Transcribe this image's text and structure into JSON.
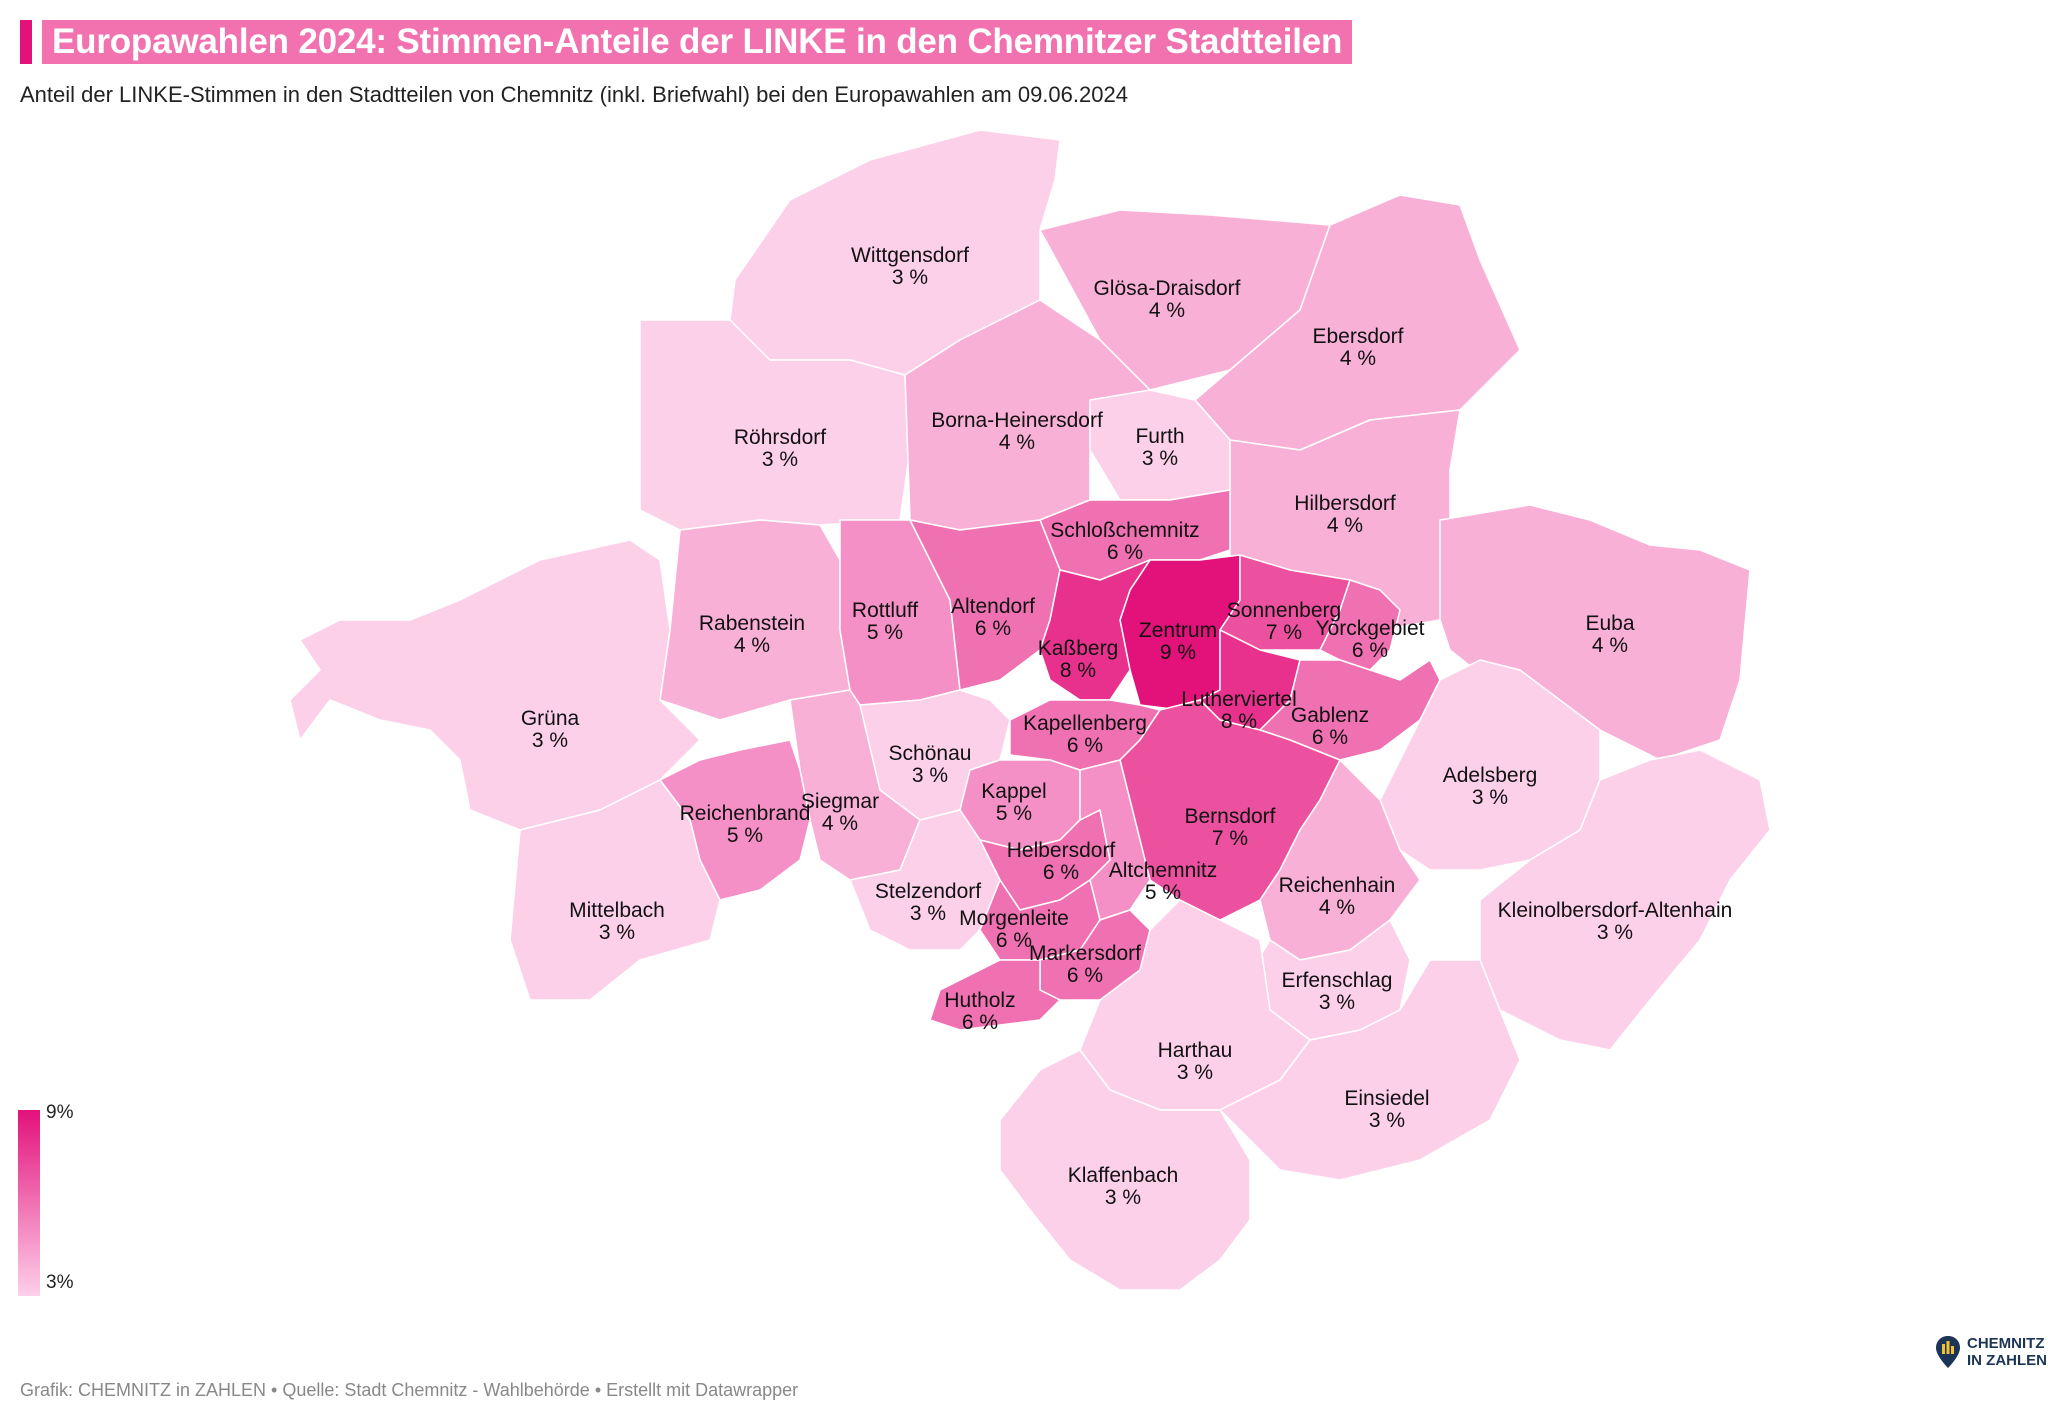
{
  "header": {
    "title": "Europawahlen 2024: Stimmen-Anteile der LINKE in den Chemnitzer Stadtteilen",
    "subtitle": "Anteil der LINKE-Stimmen in den Stadtteilen von Chemnitz (inkl. Briefwahl) bei den Europawahlen am 09.06.2024"
  },
  "legend": {
    "max_label": "9%",
    "min_label": "3%"
  },
  "colors": {
    "accent": "#e3117a",
    "title_bg": "#f272b0",
    "scale_low": "#fdd0ea",
    "scale_high": "#e3117a"
  },
  "footer": {
    "source": "Grafik: CHEMNITZ in ZAHLEN • Quelle: Stadt Chemnitz - Wahlbehörde • Erstellt mit Datawrapper"
  },
  "logo": {
    "line1": "CHEMNITZ",
    "line2": "IN ZAHLEN"
  },
  "districts": [
    {
      "name": "Wittgensdorf",
      "value": 3,
      "label": "3 %"
    },
    {
      "name": "Glösa-Draisdorf",
      "value": 4,
      "label": "4 %"
    },
    {
      "name": "Ebersdorf",
      "value": 4,
      "label": "4 %"
    },
    {
      "name": "Röhrsdorf",
      "value": 3,
      "label": "3 %"
    },
    {
      "name": "Borna-Heinersdorf",
      "value": 4,
      "label": "4 %"
    },
    {
      "name": "Furth",
      "value": 3,
      "label": "3 %"
    },
    {
      "name": "Hilbersdorf",
      "value": 4,
      "label": "4 %"
    },
    {
      "name": "Schloßchemnitz",
      "value": 6,
      "label": "6 %"
    },
    {
      "name": "Rabenstein",
      "value": 4,
      "label": "4 %"
    },
    {
      "name": "Rottluff",
      "value": 5,
      "label": "5 %"
    },
    {
      "name": "Altendorf",
      "value": 6,
      "label": "6 %"
    },
    {
      "name": "Zentrum",
      "value": 9,
      "label": "9 %"
    },
    {
      "name": "Sonnenberg",
      "value": 7,
      "label": "7 %"
    },
    {
      "name": "Yorckgebiet",
      "value": 6,
      "label": "6 %"
    },
    {
      "name": "Euba",
      "value": 4,
      "label": "4 %"
    },
    {
      "name": "Kaßberg",
      "value": 8,
      "label": "8 %"
    },
    {
      "name": "Lutherviertel",
      "value": 8,
      "label": "8 %"
    },
    {
      "name": "Gablenz",
      "value": 6,
      "label": "6 %"
    },
    {
      "name": "Grüna",
      "value": 3,
      "label": "3 %"
    },
    {
      "name": "Kapellenberg",
      "value": 6,
      "label": "6 %"
    },
    {
      "name": "Schönau",
      "value": 3,
      "label": "3 %"
    },
    {
      "name": "Adelsberg",
      "value": 3,
      "label": "3 %"
    },
    {
      "name": "Kappel",
      "value": 5,
      "label": "5 %"
    },
    {
      "name": "Siegmar",
      "value": 4,
      "label": "4 %"
    },
    {
      "name": "Reichenbrand",
      "value": 5,
      "label": "5 %"
    },
    {
      "name": "Bernsdorf",
      "value": 7,
      "label": "7 %"
    },
    {
      "name": "Helbersdorf",
      "value": 6,
      "label": "6 %"
    },
    {
      "name": "Altchemnitz",
      "value": 5,
      "label": "5 %"
    },
    {
      "name": "Reichenhain",
      "value": 4,
      "label": "4 %"
    },
    {
      "name": "Stelzendorf",
      "value": 3,
      "label": "3 %"
    },
    {
      "name": "Mittelbach",
      "value": 3,
      "label": "3 %"
    },
    {
      "name": "Kleinolbersdorf-Altenhain",
      "value": 3,
      "label": "3 %"
    },
    {
      "name": "Morgenleite",
      "value": 6,
      "label": "6 %"
    },
    {
      "name": "Markersdorf",
      "value": 6,
      "label": "6 %"
    },
    {
      "name": "Erfenschlag",
      "value": 3,
      "label": "3 %"
    },
    {
      "name": "Hutholz",
      "value": 6,
      "label": "6 %"
    },
    {
      "name": "Harthau",
      "value": 3,
      "label": "3 %"
    },
    {
      "name": "Einsiedel",
      "value": 3,
      "label": "3 %"
    },
    {
      "name": "Klaffenbach",
      "value": 3,
      "label": "3 %"
    }
  ]
}
